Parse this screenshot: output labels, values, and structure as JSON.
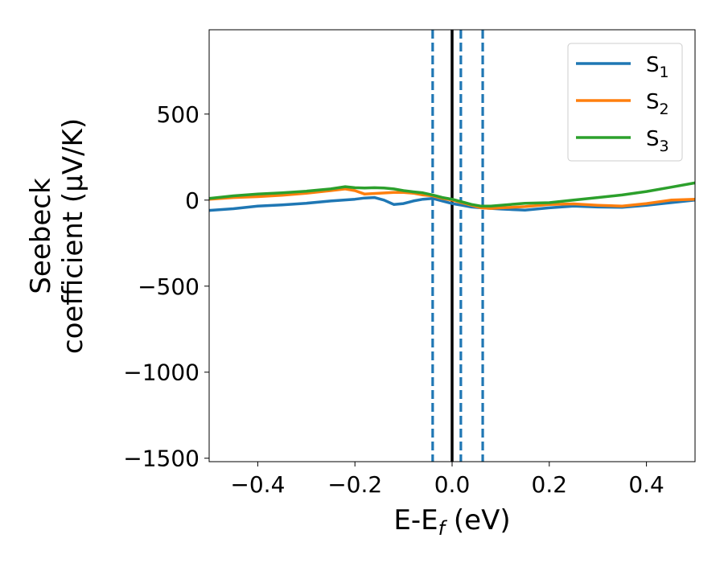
{
  "chart_data": {
    "type": "line",
    "xlabel": "E-E",
    "xlabel_sub": "f",
    "xlabel_unit": " (eV)",
    "ylabel_line1": "Seebeck",
    "ylabel_line2": "coefficient  (μV/K)",
    "xlim": [
      -0.5,
      0.5
    ],
    "ylim": [
      -1520,
      990
    ],
    "xticks": [
      -0.4,
      -0.2,
      0.0,
      0.2,
      0.4
    ],
    "xtick_labels": [
      "−0.4",
      "−0.2",
      "0.0",
      "0.2",
      "0.4"
    ],
    "yticks": [
      500,
      0,
      -500,
      -1000,
      -1500
    ],
    "ytick_labels": [
      "500",
      "0",
      "−500",
      "−1000",
      "−1500"
    ],
    "grid": false,
    "legend_position": "top-right",
    "series": [
      {
        "name": "S",
        "name_sub": "1",
        "color": "#1f77b4",
        "x": [
          -0.5,
          -0.45,
          -0.4,
          -0.35,
          -0.3,
          -0.25,
          -0.2,
          -0.18,
          -0.16,
          -0.14,
          -0.12,
          -0.1,
          -0.08,
          -0.06,
          -0.04,
          -0.02,
          0.0,
          0.02,
          0.04,
          0.06,
          0.08,
          0.1,
          0.15,
          0.2,
          0.25,
          0.3,
          0.35,
          0.4,
          0.45,
          0.5
        ],
        "y": [
          -60,
          -50,
          -35,
          -28,
          -18,
          -5,
          5,
          12,
          15,
          0,
          -25,
          -20,
          -5,
          5,
          10,
          -5,
          -20,
          -30,
          -40,
          -45,
          -48,
          -52,
          -58,
          -45,
          -35,
          -40,
          -42,
          -30,
          -15,
          0
        ]
      },
      {
        "name": "S",
        "name_sub": "2",
        "color": "#ff7f0e",
        "x": [
          -0.5,
          -0.45,
          -0.4,
          -0.35,
          -0.3,
          -0.25,
          -0.22,
          -0.2,
          -0.18,
          -0.15,
          -0.12,
          -0.1,
          -0.08,
          -0.06,
          -0.04,
          -0.02,
          0.0,
          0.02,
          0.04,
          0.06,
          0.08,
          0.1,
          0.15,
          0.2,
          0.25,
          0.3,
          0.35,
          0.4,
          0.45,
          0.5
        ],
        "y": [
          5,
          15,
          20,
          28,
          40,
          55,
          65,
          55,
          35,
          40,
          45,
          45,
          40,
          30,
          25,
          10,
          0,
          -15,
          -30,
          -45,
          -48,
          -45,
          -38,
          -25,
          -22,
          -30,
          -35,
          -20,
          0,
          5
        ]
      },
      {
        "name": "S",
        "name_sub": "3",
        "color": "#2ca02c",
        "x": [
          -0.5,
          -0.45,
          -0.4,
          -0.35,
          -0.3,
          -0.25,
          -0.22,
          -0.2,
          -0.18,
          -0.16,
          -0.14,
          -0.12,
          -0.1,
          -0.08,
          -0.06,
          -0.04,
          -0.02,
          0.0,
          0.02,
          0.04,
          0.06,
          0.08,
          0.1,
          0.15,
          0.2,
          0.25,
          0.3,
          0.35,
          0.4,
          0.45,
          0.5
        ],
        "y": [
          10,
          25,
          35,
          42,
          52,
          65,
          78,
          72,
          70,
          72,
          70,
          65,
          55,
          48,
          42,
          30,
          15,
          5,
          -10,
          -25,
          -35,
          -35,
          -30,
          -18,
          -15,
          0,
          15,
          30,
          50,
          75,
          100
        ]
      }
    ],
    "vlines": [
      {
        "x": 0.0,
        "style": "solid",
        "color": "#000000"
      },
      {
        "x": -0.04,
        "style": "dashed",
        "color": "#1f77b4"
      },
      {
        "x": 0.018,
        "style": "dashed",
        "color": "#1f77b4"
      },
      {
        "x": 0.063,
        "style": "dashed",
        "color": "#1f77b4"
      }
    ]
  }
}
